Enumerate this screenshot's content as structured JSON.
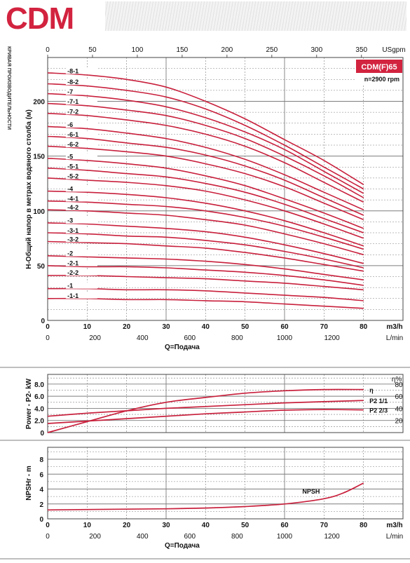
{
  "header": {
    "logo": "CDM",
    "side_caption": "КРИВАЯ ПРОИЗВОДИТЕЛЬНОСТИ"
  },
  "colors": {
    "curve": "#c8203c",
    "grid": "#7d7d7d",
    "badge_bg": "#d2233f"
  },
  "chart_data": [
    {
      "type": "line",
      "badge": "CDM(F)65",
      "speed_label": "n=2900 rpm",
      "ylabel": "H-Общий напор в метрах водяного столба (м)",
      "xlabel": "Q=Подача",
      "x_unit_label": "m3/h",
      "xlim": [
        0,
        80
      ],
      "ylim": [
        0,
        240
      ],
      "x_ticks": [
        0,
        10,
        20,
        30,
        40,
        50,
        60,
        70,
        80
      ],
      "y_ticks": [
        50,
        100,
        150,
        200
      ],
      "top_axis": {
        "unit": "USgpm",
        "ticks": [
          0,
          50,
          100,
          150,
          200,
          250,
          300,
          350
        ]
      },
      "bottom_axis2": {
        "unit": "L/min",
        "ticks": [
          0,
          200,
          400,
          600,
          800,
          1000,
          1200
        ]
      },
      "x": [
        0,
        10,
        20,
        30,
        40,
        50,
        60,
        70,
        80
      ],
      "series": [
        {
          "name": "-8-1",
          "values": [
            226,
            224,
            220,
            213,
            200,
            184,
            165,
            146,
            124
          ]
        },
        {
          "name": "-8-2",
          "values": [
            216,
            214,
            210,
            204,
            193,
            178,
            160,
            140,
            120
          ]
        },
        {
          "name": "-7",
          "values": [
            207,
            205,
            201,
            195,
            185,
            172,
            156,
            136,
            116
          ]
        },
        {
          "name": "-7-1",
          "values": [
            198,
            196,
            192,
            187,
            178,
            166,
            150,
            132,
            112
          ]
        },
        {
          "name": "-7-2",
          "values": [
            189,
            187,
            183,
            178,
            170,
            159,
            144,
            126,
            108
          ]
        },
        {
          "name": "-6",
          "values": [
            177,
            175,
            171,
            166,
            158,
            147,
            133,
            117,
            101
          ]
        },
        {
          "name": "-6-1",
          "values": [
            168,
            166,
            162,
            158,
            151,
            141,
            128,
            112,
            96
          ]
        },
        {
          "name": "-6-2",
          "values": [
            159,
            157,
            154,
            150,
            143,
            134,
            122,
            107,
            92
          ]
        },
        {
          "name": "-5",
          "values": [
            148,
            146,
            143,
            139,
            132,
            123,
            111,
            98,
            84
          ]
        },
        {
          "name": "-5-1",
          "values": [
            139,
            137,
            134,
            131,
            125,
            117,
            106,
            93,
            80
          ]
        },
        {
          "name": "-5-2",
          "values": [
            130,
            128,
            126,
            123,
            118,
            110,
            100,
            88,
            75
          ]
        },
        {
          "name": "-4",
          "values": [
            118,
            117,
            115,
            112,
            107,
            100,
            91,
            80,
            68
          ]
        },
        {
          "name": "-4-1",
          "values": [
            109,
            108,
            106,
            104,
            100,
            94,
            86,
            76,
            65
          ]
        },
        {
          "name": "-4-2",
          "values": [
            101,
            100,
            98,
            96,
            92,
            87,
            79,
            70,
            60
          ]
        },
        {
          "name": "-3",
          "values": [
            89,
            88,
            86,
            84,
            81,
            76,
            69,
            61,
            52
          ]
        },
        {
          "name": "-3-1",
          "values": [
            80,
            79,
            77,
            76,
            73,
            69,
            63,
            56,
            48
          ]
        },
        {
          "name": "-3-2",
          "values": [
            72,
            71,
            70,
            68,
            66,
            62,
            57,
            51,
            45
          ]
        },
        {
          "name": "-2",
          "values": [
            59,
            58,
            57,
            56,
            54,
            51,
            47,
            42,
            37
          ]
        },
        {
          "name": "-2-1",
          "values": [
            50,
            49,
            49,
            48,
            46,
            44,
            41,
            37,
            32
          ]
        },
        {
          "name": "-2-2",
          "values": [
            41,
            41,
            40,
            39,
            38,
            36,
            34,
            31,
            28
          ]
        },
        {
          "name": "-1",
          "values": [
            29,
            29,
            28,
            28,
            27,
            25,
            23,
            21,
            18
          ]
        },
        {
          "name": "-1-1",
          "values": [
            20,
            20,
            19,
            19,
            18,
            17,
            15,
            13,
            11
          ]
        }
      ]
    },
    {
      "type": "line",
      "ylabel": "Power - P2- kW",
      "y2label": "η%",
      "xlim": [
        0,
        80
      ],
      "ylim": [
        0,
        9.6
      ],
      "y_ticks": [
        0,
        2.0,
        4.0,
        6.0,
        8.0
      ],
      "y2_ticks": [
        20,
        40,
        60,
        80
      ],
      "x": [
        0,
        10,
        20,
        30,
        40,
        50,
        60,
        70,
        80
      ],
      "series": [
        {
          "name": "η",
          "axis": "right",
          "values": [
            0,
            18,
            36,
            50,
            58,
            65,
            69,
            71,
            71
          ]
        },
        {
          "name": "P2 1/1",
          "axis": "left",
          "values": [
            2.7,
            3.2,
            3.6,
            4.0,
            4.3,
            4.6,
            4.9,
            5.1,
            5.3
          ]
        },
        {
          "name": "P2 2/3",
          "axis": "left",
          "values": [
            1.5,
            1.9,
            2.3,
            2.7,
            3.1,
            3.4,
            3.7,
            3.8,
            3.75
          ]
        }
      ]
    },
    {
      "type": "line",
      "ylabel": "NPSHr - m",
      "xlabel": "Q=Подача",
      "x_unit_label": "m3/h",
      "xlim": [
        0,
        80
      ],
      "ylim": [
        0,
        9.6
      ],
      "y_ticks": [
        0,
        2,
        4,
        6,
        8
      ],
      "x_ticks": [
        0,
        10,
        20,
        30,
        40,
        50,
        60,
        70,
        80
      ],
      "bottom_axis2": {
        "unit": "L/min",
        "ticks": [
          0,
          200,
          400,
          600,
          800,
          1000,
          1200
        ]
      },
      "x": [
        0,
        10,
        20,
        30,
        40,
        50,
        60,
        70,
        75,
        80
      ],
      "series": [
        {
          "name": "NPSH",
          "values": [
            1.2,
            1.25,
            1.3,
            1.35,
            1.45,
            1.65,
            2.0,
            2.7,
            3.5,
            4.8
          ]
        }
      ]
    }
  ]
}
